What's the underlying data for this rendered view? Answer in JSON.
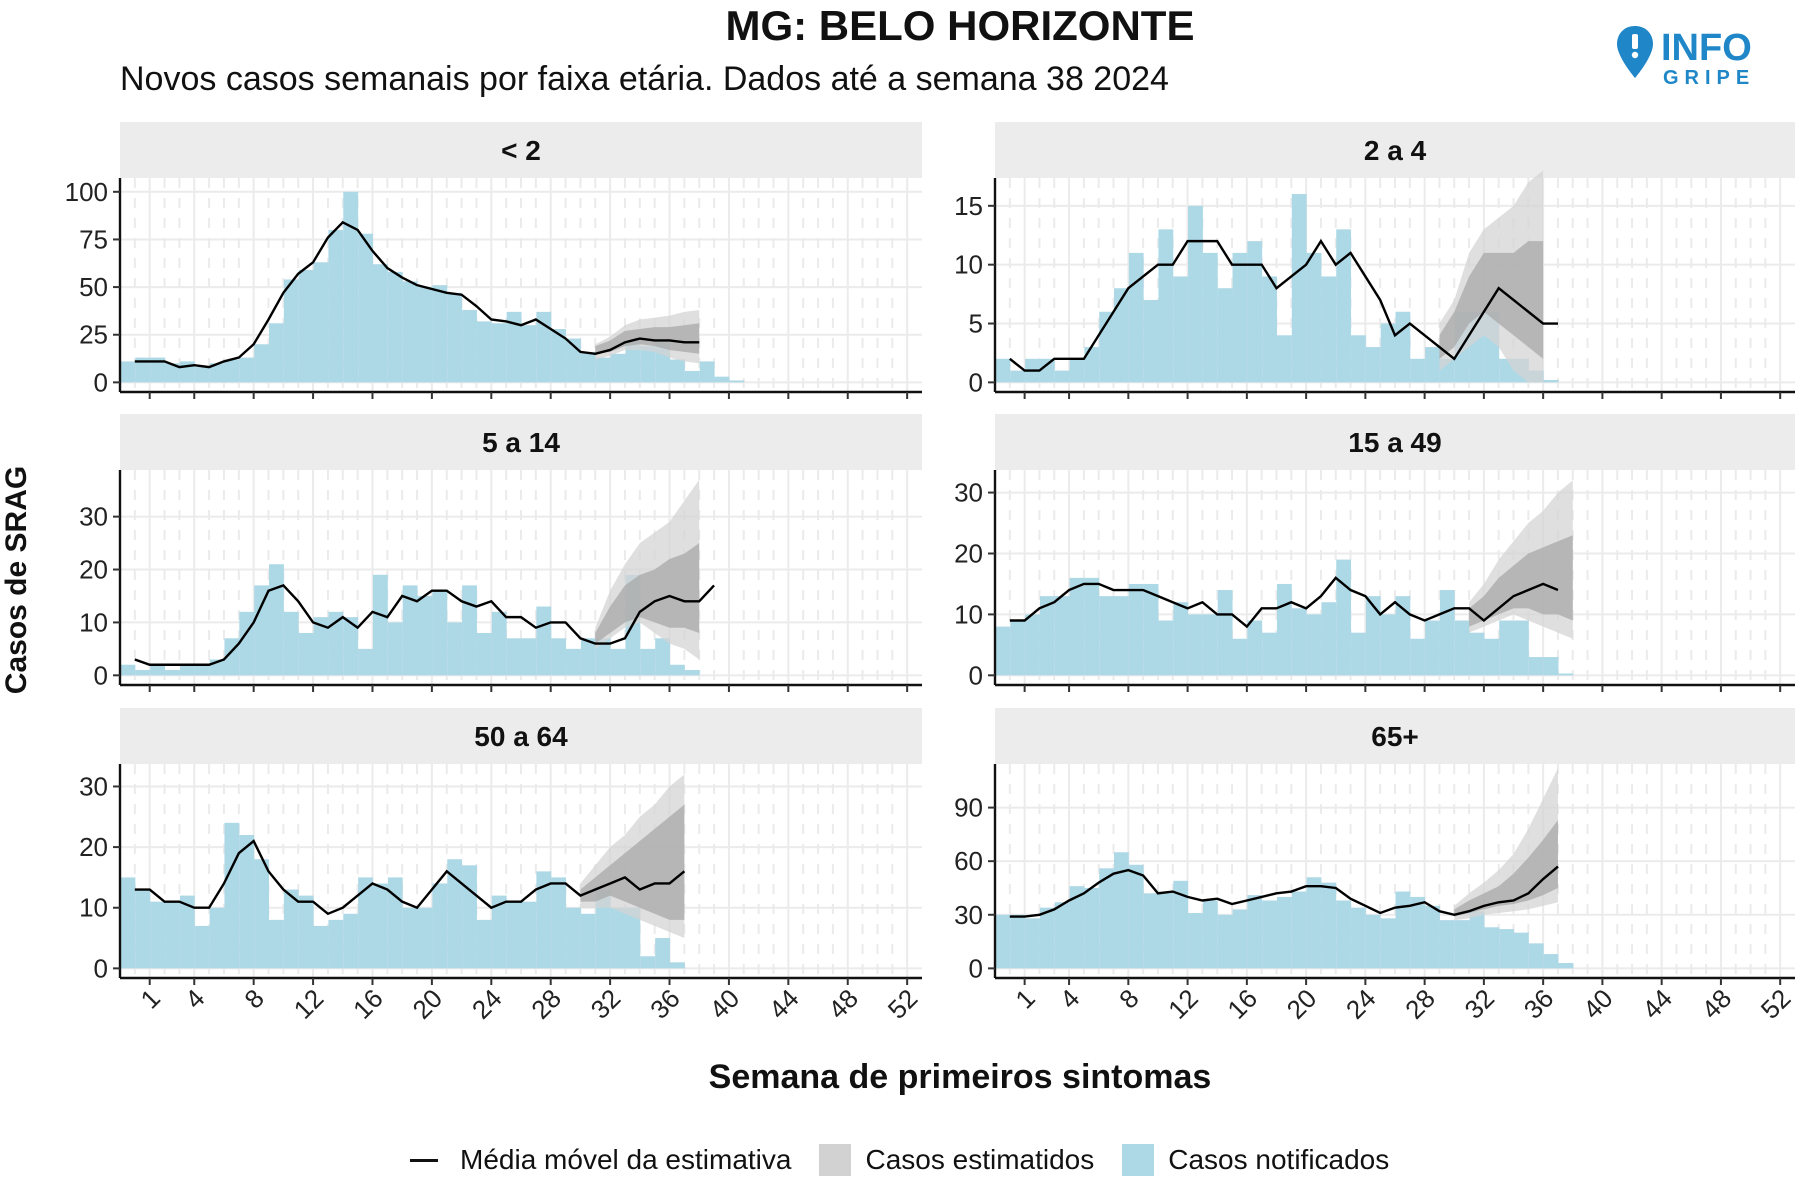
{
  "title": "MG: BELO HORIZONTE",
  "subtitle": "Novos casos semanais por faixa etária. Dados até a semana 38 2024",
  "logo": {
    "line1": "INFO",
    "line2": "GRIPE",
    "icon": "map-pin-exclamation-icon"
  },
  "colors": {
    "notified": "#add8e6",
    "estimate_line": "#000000",
    "ci_outer": "#d4d4d4",
    "ci_inner": "#a8a8a8",
    "strip": "#ececec",
    "grid": "#ebebeb"
  },
  "legend": {
    "line": "Média móvel da estimativa",
    "estimated": "Casos estimatidos",
    "notified": "Casos notificados"
  },
  "chart_data": {
    "type": "bar",
    "xlabel": "Semana de primeiros sintomas",
    "ylabel": "Casos de SRAG",
    "x_ticks": [
      1,
      4,
      8,
      12,
      16,
      20,
      24,
      28,
      32,
      36,
      40,
      44,
      48,
      52
    ],
    "xlim": [
      -1,
      53
    ],
    "panels": [
      {
        "name": "< 2",
        "ylim": [
          0,
          105
        ],
        "yticks": [
          0,
          25,
          50,
          75,
          100
        ],
        "bars_start": -0.5,
        "bars": [
          11,
          13,
          13,
          10,
          11,
          8,
          10,
          12,
          13,
          20,
          31,
          54,
          59,
          63,
          80,
          100,
          78,
          62,
          58,
          53,
          50,
          51,
          47,
          38,
          32,
          31,
          37,
          30,
          37,
          28,
          23,
          16,
          13,
          15,
          22,
          19,
          21,
          12,
          6,
          11,
          3,
          1
        ],
        "line_start": 0,
        "line": [
          11,
          11,
          11,
          8,
          9,
          8,
          11,
          13,
          20,
          33,
          47,
          57,
          63,
          76,
          84,
          80,
          69,
          60,
          55,
          51,
          49,
          47,
          46,
          40,
          33,
          32,
          30,
          33,
          28,
          23,
          16,
          15,
          17,
          21,
          23,
          22,
          22,
          21,
          21
        ],
        "ci_start": 31,
        "ci_inner": [
          [
            15,
            19
          ],
          [
            16,
            22
          ],
          [
            19,
            27
          ],
          [
            20,
            28
          ],
          [
            19,
            29
          ],
          [
            17,
            29
          ],
          [
            16,
            30
          ],
          [
            15,
            31
          ]
        ],
        "ci_outer": [
          [
            12,
            20
          ],
          [
            14,
            24
          ],
          [
            17,
            30
          ],
          [
            17,
            33
          ],
          [
            16,
            34
          ],
          [
            13,
            35
          ],
          [
            11,
            37
          ],
          [
            10,
            38
          ]
        ]
      },
      {
        "name": "2 a 4",
        "ylim": [
          0,
          17
        ],
        "yticks": [
          0,
          5,
          10,
          15
        ],
        "bars_start": -0.5,
        "bars": [
          2,
          1,
          2,
          2,
          1,
          2,
          3,
          6,
          8,
          11,
          7,
          13,
          9,
          15,
          11,
          8,
          11,
          12,
          9,
          4,
          16,
          11,
          9,
          13,
          4,
          3,
          5,
          6,
          2,
          3,
          2,
          6,
          6,
          6,
          2,
          2,
          1,
          0.2
        ],
        "line_start": 0,
        "line": [
          2,
          1,
          1,
          2,
          2,
          2,
          4,
          6,
          8,
          9,
          10,
          10,
          12,
          12,
          12,
          10,
          10,
          10,
          8,
          9,
          10,
          12,
          10,
          11,
          9,
          7,
          4,
          5,
          4,
          3,
          2,
          4,
          6,
          8,
          7,
          6,
          5,
          5
        ],
        "ci_start": 29,
        "ci_inner": [
          [
            2,
            4
          ],
          [
            3,
            6
          ],
          [
            5,
            9
          ],
          [
            6,
            11
          ],
          [
            5,
            11
          ],
          [
            4,
            11
          ],
          [
            3,
            12
          ],
          [
            2,
            12
          ]
        ],
        "ci_outer": [
          [
            1,
            5
          ],
          [
            2,
            7
          ],
          [
            3,
            11
          ],
          [
            4,
            13
          ],
          [
            3,
            14
          ],
          [
            1,
            15
          ],
          [
            0,
            17
          ],
          [
            0,
            18
          ]
        ]
      },
      {
        "name": "5 a 14",
        "ylim": [
          0,
          38
        ],
        "yticks": [
          0,
          10,
          20,
          30
        ],
        "bars_start": -0.5,
        "bars": [
          2,
          1,
          2,
          1,
          2,
          2,
          3,
          7,
          12,
          17,
          21,
          12,
          8,
          11,
          12,
          11,
          5,
          19,
          10,
          17,
          15,
          16,
          10,
          17,
          8,
          12,
          7,
          7,
          13,
          7,
          5,
          7,
          7,
          5,
          19,
          5,
          7,
          2,
          1
        ],
        "line_start": 0,
        "line": [
          3,
          2,
          2,
          2,
          2,
          2,
          3,
          6,
          10,
          16,
          17,
          14,
          10,
          9,
          11,
          9,
          12,
          11,
          15,
          14,
          16,
          16,
          14,
          13,
          14,
          11,
          11,
          9,
          10,
          10,
          7,
          6,
          6,
          7,
          12,
          14,
          15,
          14,
          14,
          17
        ],
        "ci_start": 31,
        "ci_inner": [
          [
            6,
            8
          ],
          [
            8,
            13
          ],
          [
            10,
            17
          ],
          [
            11,
            19
          ],
          [
            10,
            20
          ],
          [
            9,
            22
          ],
          [
            9,
            23
          ],
          [
            8,
            25
          ]
        ],
        "ci_outer": [
          [
            5,
            9
          ],
          [
            7,
            16
          ],
          [
            9,
            21
          ],
          [
            10,
            25
          ],
          [
            8,
            27
          ],
          [
            6,
            29
          ],
          [
            5,
            33
          ],
          [
            3,
            37
          ]
        ]
      },
      {
        "name": "15 a 49",
        "ylim": [
          0,
          33
        ],
        "yticks": [
          0,
          10,
          20,
          30
        ],
        "bars_start": -0.5,
        "bars": [
          8,
          9,
          10,
          13,
          13,
          16,
          16,
          13,
          13,
          15,
          15,
          9,
          12,
          10,
          10,
          14,
          6,
          9,
          7,
          15,
          11,
          10,
          12,
          19,
          7,
          13,
          10,
          13,
          6,
          9,
          14,
          9,
          7,
          6,
          9,
          9,
          3,
          3,
          0.3
        ],
        "line_start": 0,
        "line": [
          9,
          9,
          11,
          12,
          14,
          15,
          15,
          14,
          14,
          14,
          13,
          12,
          11,
          12,
          10,
          10,
          8,
          11,
          11,
          12,
          11,
          13,
          16,
          14,
          13,
          10,
          12,
          10,
          9,
          10,
          11,
          11,
          9,
          11,
          13,
          14,
          15,
          14
        ],
        "ci_start": 31,
        "ci_inner": [
          [
            8,
            11
          ],
          [
            9,
            13
          ],
          [
            10,
            16
          ],
          [
            11,
            18
          ],
          [
            11,
            20
          ],
          [
            10,
            21
          ],
          [
            10,
            22
          ],
          [
            9,
            23
          ]
        ],
        "ci_outer": [
          [
            7,
            12
          ],
          [
            8,
            15
          ],
          [
            9,
            19
          ],
          [
            10,
            22
          ],
          [
            9,
            25
          ],
          [
            8,
            27
          ],
          [
            7,
            30
          ],
          [
            6,
            32
          ]
        ]
      },
      {
        "name": "50 a 64",
        "ylim": [
          0,
          33
        ],
        "yticks": [
          0,
          10,
          20,
          30
        ],
        "bars_start": -0.5,
        "bars": [
          15,
          13,
          11,
          11,
          12,
          7,
          10,
          24,
          22,
          18,
          8,
          13,
          12,
          7,
          8,
          9,
          15,
          14,
          15,
          10,
          10,
          14,
          18,
          17,
          8,
          12,
          11,
          11,
          16,
          15,
          10,
          9,
          13,
          10,
          10,
          2,
          5,
          1
        ],
        "line_start": 0,
        "line": [
          13,
          13,
          11,
          11,
          10,
          10,
          14,
          19,
          21,
          16,
          13,
          11,
          11,
          9,
          10,
          12,
          14,
          13,
          11,
          10,
          13,
          16,
          14,
          12,
          10,
          11,
          11,
          13,
          14,
          14,
          12,
          13,
          14,
          15,
          13,
          14,
          14,
          16
        ],
        "ci_start": 30,
        "ci_inner": [
          [
            11,
            13
          ],
          [
            11,
            15
          ],
          [
            12,
            17
          ],
          [
            11,
            19
          ],
          [
            10,
            21
          ],
          [
            9,
            23
          ],
          [
            8,
            25
          ],
          [
            8,
            27
          ]
        ],
        "ci_outer": [
          [
            10,
            14
          ],
          [
            10,
            17
          ],
          [
            10,
            20
          ],
          [
            9,
            22
          ],
          [
            8,
            25
          ],
          [
            7,
            27
          ],
          [
            6,
            30
          ],
          [
            5,
            32
          ]
        ]
      },
      {
        "name": "65+",
        "ylim": [
          0,
          112
        ],
        "yticks": [
          0,
          30,
          60,
          90
        ],
        "bars_start": -0.5,
        "bars": [
          30,
          30,
          28,
          34,
          37,
          46,
          45,
          56,
          65,
          58,
          42,
          43,
          49,
          31,
          38,
          30,
          33,
          41,
          38,
          40,
          43,
          51,
          48,
          38,
          34,
          30,
          28,
          43,
          40,
          35,
          27,
          27,
          32,
          23,
          22,
          20,
          14,
          8,
          3
        ],
        "line_start": 0,
        "line": [
          29,
          29,
          30,
          33,
          38,
          42,
          48,
          53,
          55,
          52,
          42,
          43,
          40,
          38,
          39,
          36,
          38,
          40,
          42,
          43,
          46,
          46,
          45,
          39,
          35,
          31,
          34,
          35,
          37,
          32,
          30,
          32,
          35,
          37,
          38,
          42,
          50,
          57
        ],
        "ci_start": 30,
        "ci_inner": [
          [
            29,
            33
          ],
          [
            31,
            38
          ],
          [
            33,
            42
          ],
          [
            35,
            46
          ],
          [
            36,
            53
          ],
          [
            38,
            62
          ],
          [
            41,
            72
          ],
          [
            45,
            83
          ]
        ],
        "ci_outer": [
          [
            27,
            35
          ],
          [
            28,
            42
          ],
          [
            30,
            48
          ],
          [
            31,
            55
          ],
          [
            32,
            64
          ],
          [
            33,
            78
          ],
          [
            35,
            95
          ],
          [
            37,
            112
          ]
        ]
      }
    ]
  }
}
